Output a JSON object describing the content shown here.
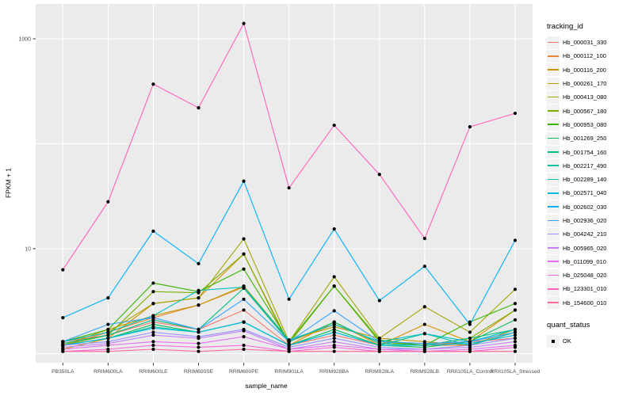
{
  "figure": {
    "background": "#FFFFFF",
    "panel_background": "#EBEBEB",
    "grid_color": "#FFFFFF",
    "tick_color": "#333333",
    "tick_label_color": "#4D4D4D",
    "axis_title_color": "#000000",
    "point_color": "#000000",
    "legend_key_fill": "#F2F2F2"
  },
  "chart_data": {
    "type": "line",
    "title": "",
    "xlabel": "sample_name",
    "ylabel": "FPKM + 1",
    "y_scale": "log10",
    "ylim": [
      0.82,
      2100
    ],
    "grid": true,
    "legend_position": "right",
    "y_ticks": [
      {
        "value": 10,
        "label": "10"
      },
      {
        "value": 1000,
        "label": "1000"
      }
    ],
    "y_gridlines": [
      1,
      10,
      100,
      1000
    ],
    "categories": [
      "PB350LA",
      "RRIM600LA",
      "RRIM600LE",
      "RRIM600SE",
      "RRIM600PE",
      "RRIM901LA",
      "RRIM928BA",
      "RRIM928LA",
      "RRIM928LB",
      "RRII105LA_Control",
      "RRII105LA_Stressed"
    ],
    "series": [
      {
        "name": "Hb_000031_330",
        "color": "#F8766D",
        "values": [
          1.3,
          1.5,
          2.0,
          1.7,
          2.6,
          1.2,
          1.5,
          1.2,
          1.2,
          1.3,
          1.4
        ]
      },
      {
        "name": "Hb_000112_100",
        "color": "#EA8331",
        "values": [
          1.2,
          1.6,
          2.2,
          2.9,
          4.3,
          1.3,
          1.9,
          1.3,
          1.2,
          1.2,
          1.6
        ]
      },
      {
        "name": "Hb_000116_200",
        "color": "#D89000",
        "values": [
          1.1,
          1.4,
          3.0,
          3.4,
          8.9,
          1.2,
          2.0,
          1.2,
          1.9,
          1.3,
          2.6
        ]
      },
      {
        "name": "Hb_000261_170",
        "color": "#C09B00",
        "values": [
          1.2,
          1.7,
          2.3,
          2.9,
          4.4,
          1.35,
          1.8,
          1.4,
          1.3,
          1.2,
          1.7
        ]
      },
      {
        "name": "Hb_000413_080",
        "color": "#A3A500",
        "values": [
          1.3,
          1.6,
          3.0,
          3.4,
          12.4,
          1.3,
          5.4,
          1.4,
          2.8,
          1.6,
          4.1
        ]
      },
      {
        "name": "Hb_000567_180",
        "color": "#7CAE00",
        "values": [
          1.2,
          1.5,
          3.9,
          3.8,
          8.9,
          1.25,
          4.4,
          1.3,
          1.2,
          1.4,
          2.6
        ]
      },
      {
        "name": "Hb_000953_080",
        "color": "#39B600",
        "values": [
          1.3,
          1.7,
          4.7,
          3.9,
          6.4,
          1.3,
          4.4,
          1.35,
          1.2,
          2.0,
          3.0
        ]
      },
      {
        "name": "Hb_001269_250",
        "color": "#00BB4E",
        "values": [
          1.2,
          1.4,
          1.9,
          1.6,
          2.0,
          1.2,
          1.7,
          1.2,
          1.15,
          1.3,
          2.1
        ]
      },
      {
        "name": "Hb_001754_160",
        "color": "#00BF7D",
        "values": [
          1.25,
          1.5,
          2.1,
          1.7,
          4.2,
          1.3,
          2.0,
          1.25,
          1.2,
          1.4,
          1.7
        ]
      },
      {
        "name": "Hb_002217_490",
        "color": "#00C1A3",
        "values": [
          1.2,
          1.4,
          1.8,
          1.6,
          2.0,
          1.2,
          1.6,
          1.2,
          1.55,
          1.2,
          1.6
        ]
      },
      {
        "name": "Hb_002289_140",
        "color": "#00BFC4",
        "values": [
          1.3,
          1.6,
          2.3,
          4.0,
          4.3,
          1.35,
          1.9,
          1.3,
          1.55,
          1.3,
          1.7
        ]
      },
      {
        "name": "Hb_002571_040",
        "color": "#00BAE0",
        "values": [
          1.2,
          1.4,
          1.75,
          1.6,
          2.0,
          1.2,
          1.6,
          1.2,
          1.2,
          1.25,
          1.5
        ]
      },
      {
        "name": "Hb_002602_030",
        "color": "#00B0F6",
        "values": [
          2.2,
          3.4,
          14.7,
          7.2,
          44,
          3.3,
          15.4,
          3.2,
          6.8,
          1.9,
          12
        ]
      },
      {
        "name": "Hb_002936_020",
        "color": "#35A2FF",
        "values": [
          1.3,
          1.9,
          2.2,
          1.7,
          3.3,
          1.3,
          2.56,
          1.3,
          1.25,
          1.3,
          1.6
        ]
      },
      {
        "name": "Hb_004242_210",
        "color": "#9590FF",
        "values": [
          1.2,
          1.3,
          1.6,
          1.45,
          1.7,
          1.15,
          1.4,
          1.15,
          1.1,
          1.2,
          1.4
        ]
      },
      {
        "name": "Hb_005965_020",
        "color": "#C77CFF",
        "values": [
          1.15,
          1.25,
          1.5,
          1.4,
          1.65,
          1.1,
          1.3,
          1.1,
          1.1,
          1.15,
          1.3
        ]
      },
      {
        "name": "Hb_011099_010",
        "color": "#E76BF3",
        "values": [
          1.1,
          1.2,
          1.3,
          1.25,
          1.45,
          1.1,
          1.2,
          1.1,
          1.05,
          1.1,
          1.2
        ]
      },
      {
        "name": "Hb_025048_020",
        "color": "#FA62DB",
        "values": [
          1.05,
          1.1,
          1.2,
          1.15,
          1.2,
          1.05,
          1.15,
          1.05,
          1.05,
          1.05,
          1.15
        ]
      },
      {
        "name": "Hb_123301_010",
        "color": "#FF62BC",
        "values": [
          6.3,
          28,
          370,
          220,
          1400,
          38,
          150,
          51,
          12.5,
          145,
          195
        ]
      },
      {
        "name": "Hb_154600_010",
        "color": "#FF6A98",
        "values": [
          1.05,
          1.05,
          1.1,
          1.05,
          1.1,
          1.05,
          1.05,
          1.05,
          1.05,
          1.05,
          1.05
        ]
      }
    ],
    "legend": {
      "series_title": "tracking_id",
      "quant_title": "quant_status",
      "quant_items": [
        {
          "label": "OK"
        }
      ]
    }
  }
}
